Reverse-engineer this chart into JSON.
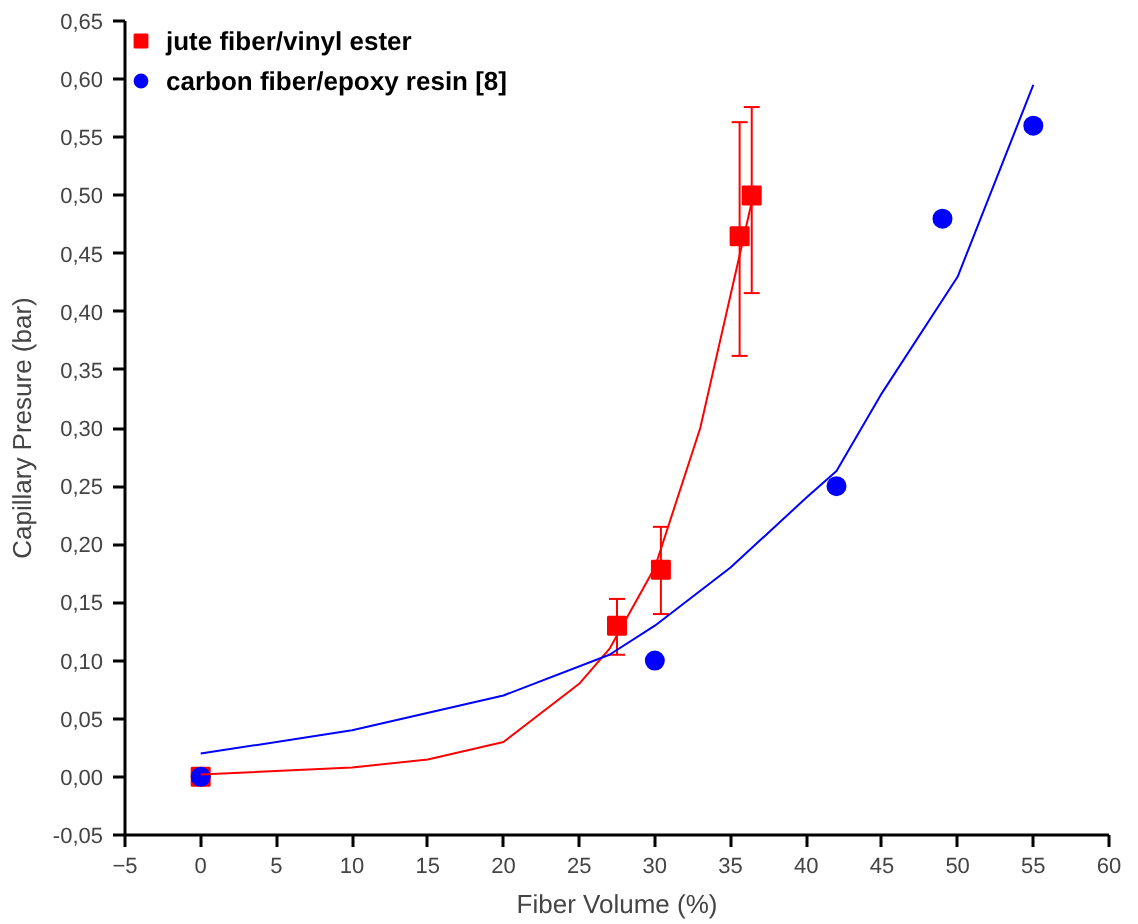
{
  "chart_data": {
    "type": "scatter",
    "xlabel": "Fiber Volume (%)",
    "ylabel": "Capillary Presure (bar)",
    "xlim": [
      -5,
      60
    ],
    "ylim": [
      -0.05,
      0.65
    ],
    "xticks": [
      -5,
      0,
      5,
      10,
      15,
      20,
      25,
      30,
      35,
      40,
      45,
      50,
      55,
      60
    ],
    "yticks": [
      {
        "value": -0.05,
        "label": "-0,05"
      },
      {
        "value": 0,
        "label": "0,00"
      },
      {
        "value": 0.05,
        "label": "0,05"
      },
      {
        "value": 0.1,
        "label": "0,10"
      },
      {
        "value": 0.15,
        "label": "0,15"
      },
      {
        "value": 0.2,
        "label": "0,20"
      },
      {
        "value": 0.25,
        "label": "0,25"
      },
      {
        "value": 0.3,
        "label": "0,30"
      },
      {
        "value": 0.35,
        "label": "0,35"
      },
      {
        "value": 0.4,
        "label": "0,40"
      },
      {
        "value": 0.45,
        "label": "0,45"
      },
      {
        "value": 0.5,
        "label": "0,50"
      },
      {
        "value": 0.55,
        "label": "0,55"
      },
      {
        "value": 0.6,
        "label": "0,60"
      },
      {
        "value": 0.65,
        "label": "0,65"
      }
    ],
    "grid": false,
    "legend": "top left",
    "series": [
      {
        "name": "jute fiber/vinyl ester",
        "color": "#ff0000",
        "marker": "square",
        "x": [
          0,
          27.5,
          30.4,
          35.6,
          36.4
        ],
        "values": [
          0,
          0.13,
          0.178,
          0.465,
          0.5
        ],
        "errors": [
          null,
          [
            0.105,
            0.153
          ],
          [
            0.14,
            0.215
          ],
          [
            0.362,
            0.563
          ],
          [
            0.416,
            0.576
          ]
        ]
      },
      {
        "name": "carbon fiber/epoxy resin [8]",
        "color": "#0000ff",
        "marker": "circle",
        "x": [
          0,
          30,
          42,
          49,
          55
        ],
        "values": [
          0,
          0.1,
          0.25,
          0.48,
          0.56
        ]
      },
      {
        "type": "line",
        "color": "#ff0000",
        "x": [
          0,
          10,
          15,
          20,
          25,
          27,
          30,
          33,
          36.5
        ],
        "values": [
          0.002,
          0.008,
          0.015,
          0.03,
          0.08,
          0.11,
          0.18,
          0.3,
          0.5
        ]
      },
      {
        "type": "line",
        "color": "#0000ff",
        "x": [
          0,
          10,
          20,
          27,
          30,
          35,
          40,
          42,
          45,
          50,
          55
        ],
        "values": [
          0.02,
          0.04,
          0.07,
          0.105,
          0.13,
          0.18,
          0.24,
          0.263,
          0.33,
          0.43,
          0.595
        ]
      }
    ]
  }
}
